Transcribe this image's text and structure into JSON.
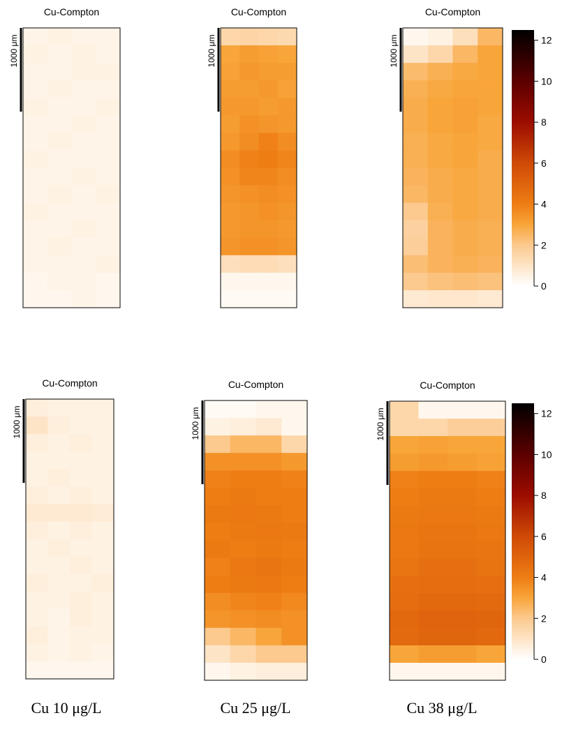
{
  "chart_data": [
    {
      "type": "heatmap",
      "title": "Cu-Compton",
      "scale_label": "1000 μm",
      "values": [
        [
          0.4,
          0.5,
          0.4,
          0.4
        ],
        [
          0.5,
          0.4,
          0.5,
          0.4
        ],
        [
          0.4,
          0.4,
          0.5,
          0.5
        ],
        [
          0.4,
          0.5,
          0.4,
          0.4
        ],
        [
          0.5,
          0.4,
          0.4,
          0.5
        ],
        [
          0.4,
          0.4,
          0.5,
          0.4
        ],
        [
          0.4,
          0.5,
          0.4,
          0.4
        ],
        [
          0.5,
          0.4,
          0.4,
          0.4
        ],
        [
          0.4,
          0.4,
          0.5,
          0.4
        ],
        [
          0.4,
          0.5,
          0.4,
          0.5
        ],
        [
          0.5,
          0.4,
          0.4,
          0.4
        ],
        [
          0.4,
          0.4,
          0.5,
          0.4
        ],
        [
          0.4,
          0.5,
          0.4,
          0.4
        ],
        [
          0.4,
          0.4,
          0.4,
          0.5
        ],
        [
          0.3,
          0.4,
          0.4,
          0.3
        ],
        [
          0.3,
          0.3,
          0.4,
          0.3
        ]
      ]
    },
    {
      "type": "heatmap",
      "title": "Cu-Compton",
      "scale_label": "1000 μm",
      "values": [
        [
          1.5,
          1.6,
          1.5,
          1.4
        ],
        [
          3.0,
          3.2,
          3.1,
          3.0
        ],
        [
          3.1,
          3.3,
          3.2,
          3.2
        ],
        [
          3.2,
          3.2,
          3.3,
          3.1
        ],
        [
          3.3,
          3.3,
          3.2,
          3.3
        ],
        [
          3.2,
          3.5,
          3.4,
          3.3
        ],
        [
          3.3,
          3.6,
          3.9,
          3.6
        ],
        [
          3.6,
          3.9,
          4.0,
          3.8
        ],
        [
          3.5,
          3.8,
          3.8,
          3.6
        ],
        [
          3.4,
          3.5,
          3.6,
          3.5
        ],
        [
          3.3,
          3.4,
          3.5,
          3.4
        ],
        [
          3.3,
          3.4,
          3.4,
          3.3
        ],
        [
          3.4,
          3.5,
          3.5,
          3.4
        ],
        [
          1.2,
          1.3,
          1.3,
          1.2
        ],
        [
          0.3,
          0.3,
          0.3,
          0.3
        ],
        [
          0.2,
          0.2,
          0.2,
          0.2
        ]
      ]
    },
    {
      "type": "heatmap",
      "title": "Cu-Compton",
      "scale_label": "1000 μm",
      "values": [
        [
          0.3,
          0.5,
          1.2,
          2.5
        ],
        [
          1.0,
          1.5,
          2.5,
          3.0
        ],
        [
          2.4,
          2.7,
          2.9,
          3.0
        ],
        [
          2.7,
          2.9,
          3.0,
          3.0
        ],
        [
          2.8,
          3.0,
          3.1,
          3.0
        ],
        [
          2.8,
          3.0,
          3.1,
          2.9
        ],
        [
          2.7,
          2.9,
          3.0,
          2.9
        ],
        [
          2.7,
          2.9,
          3.0,
          2.8
        ],
        [
          2.6,
          2.8,
          2.9,
          2.8
        ],
        [
          2.5,
          2.8,
          2.9,
          2.8
        ],
        [
          2.0,
          2.7,
          2.9,
          2.8
        ],
        [
          1.7,
          2.6,
          2.8,
          2.7
        ],
        [
          1.8,
          2.6,
          2.8,
          2.7
        ],
        [
          2.3,
          2.6,
          2.7,
          2.6
        ],
        [
          2.0,
          2.2,
          2.3,
          2.2
        ],
        [
          0.8,
          0.9,
          0.9,
          0.8
        ]
      ],
      "colorbar": {
        "ylim": [
          0,
          12.5
        ],
        "yticks": [
          0,
          2,
          4,
          6,
          8,
          10,
          12
        ]
      }
    },
    {
      "type": "heatmap",
      "title": "Cu-Compton",
      "scale_label": "1000 μm",
      "values": [
        [
          0.6,
          0.5,
          0.5,
          0.5
        ],
        [
          1.0,
          0.6,
          0.5,
          0.5
        ],
        [
          0.6,
          0.5,
          0.6,
          0.5
        ],
        [
          0.5,
          0.5,
          0.5,
          0.5
        ],
        [
          0.5,
          0.6,
          0.5,
          0.5
        ],
        [
          0.6,
          0.5,
          0.6,
          0.5
        ],
        [
          0.8,
          0.8,
          0.8,
          0.7
        ],
        [
          0.6,
          0.5,
          0.6,
          0.5
        ],
        [
          0.5,
          0.6,
          0.5,
          0.5
        ],
        [
          0.5,
          0.5,
          0.6,
          0.5
        ],
        [
          0.6,
          0.5,
          0.5,
          0.6
        ],
        [
          0.5,
          0.5,
          0.6,
          0.5
        ],
        [
          0.5,
          0.4,
          0.6,
          0.5
        ],
        [
          0.6,
          0.4,
          0.5,
          0.5
        ],
        [
          0.5,
          0.4,
          0.5,
          0.4
        ],
        [
          0.3,
          0.3,
          0.3,
          0.3
        ]
      ]
    },
    {
      "type": "heatmap",
      "title": "Cu-Compton",
      "scale_label": "1000 μm",
      "values": [
        [
          0.2,
          0.2,
          0.3,
          0.3
        ],
        [
          0.5,
          0.6,
          0.8,
          0.3
        ],
        [
          2.0,
          2.5,
          2.5,
          1.5
        ],
        [
          3.5,
          3.5,
          3.5,
          3.3
        ],
        [
          3.9,
          4.0,
          4.0,
          3.9
        ],
        [
          4.0,
          4.1,
          4.0,
          4.0
        ],
        [
          4.1,
          4.2,
          4.1,
          4.0
        ],
        [
          4.0,
          4.1,
          4.2,
          4.1
        ],
        [
          4.1,
          4.0,
          4.1,
          4.0
        ],
        [
          3.9,
          4.2,
          4.3,
          4.1
        ],
        [
          4.0,
          4.1,
          4.2,
          4.0
        ],
        [
          3.6,
          3.8,
          3.9,
          3.7
        ],
        [
          3.4,
          3.5,
          3.6,
          3.5
        ],
        [
          2.0,
          2.5,
          3.0,
          3.5
        ],
        [
          1.0,
          1.5,
          2.0,
          2.0
        ],
        [
          0.3,
          0.5,
          0.6,
          0.6
        ]
      ]
    },
    {
      "type": "heatmap",
      "title": "Cu-Compton",
      "scale_label": "1000 μm",
      "values": [
        [
          1.5,
          0.3,
          0.3,
          0.3
        ],
        [
          1.5,
          1.5,
          1.8,
          1.8
        ],
        [
          3.0,
          3.1,
          3.0,
          3.0
        ],
        [
          3.2,
          3.3,
          3.2,
          3.1
        ],
        [
          3.9,
          4.0,
          4.0,
          3.9
        ],
        [
          4.0,
          4.1,
          4.1,
          4.0
        ],
        [
          4.1,
          4.2,
          4.2,
          4.1
        ],
        [
          4.2,
          4.3,
          4.3,
          4.2
        ],
        [
          4.2,
          4.4,
          4.4,
          4.3
        ],
        [
          4.3,
          4.5,
          4.5,
          4.4
        ],
        [
          4.5,
          4.6,
          4.6,
          4.5
        ],
        [
          4.6,
          4.8,
          4.8,
          4.7
        ],
        [
          4.8,
          5.0,
          5.0,
          4.9
        ],
        [
          4.7,
          4.9,
          4.9,
          4.8
        ],
        [
          3.0,
          3.2,
          3.2,
          3.0
        ],
        [
          0.3,
          0.3,
          0.3,
          0.3
        ]
      ],
      "colorbar": {
        "ylim": [
          0,
          12.5
        ],
        "yticks": [
          0,
          2,
          4,
          6,
          8,
          10,
          12
        ]
      }
    }
  ],
  "colorscale": [
    [
      0,
      "#ffffff"
    ],
    [
      2,
      "#fcc98e"
    ],
    [
      3,
      "#f8a53a"
    ],
    [
      4,
      "#ee7d14"
    ],
    [
      6,
      "#cf4a06"
    ],
    [
      8,
      "#9c0c00"
    ],
    [
      10,
      "#5c0000"
    ],
    [
      12.5,
      "#000000"
    ]
  ],
  "column_labels": [
    "Cu 10 μg/L",
    "Cu 25 μg/L",
    "Cu 38 μg/L"
  ]
}
